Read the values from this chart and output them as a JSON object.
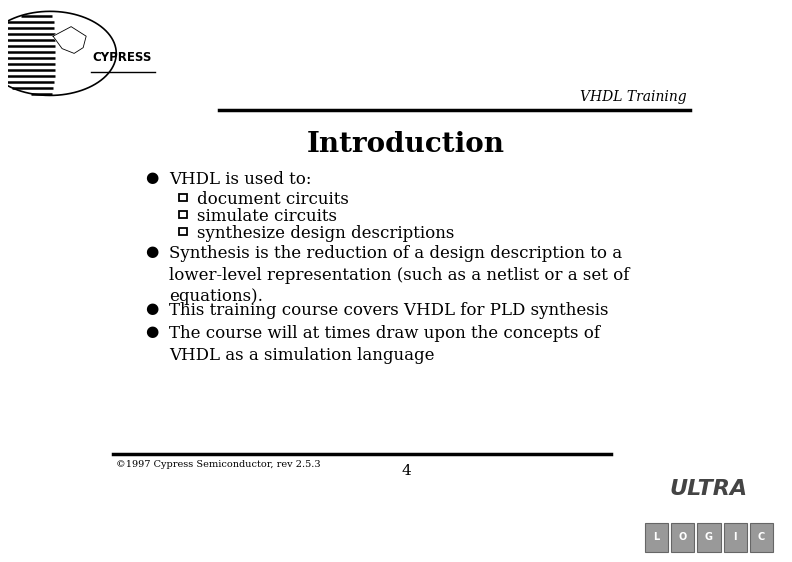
{
  "title": "Introduction",
  "header_text": "VHDL Training",
  "footer_text": "©1997 Cypress Semiconductor, rev 2.5.3",
  "page_number": "4",
  "bg_color": "#ffffff",
  "title_fontsize": 20,
  "body_fontsize": 12,
  "sub_fontsize": 12,
  "main_bullets": [
    {
      "text": "VHDL is used to:",
      "sub": [
        "document circuits",
        "simulate circuits",
        "synthesize design descriptions"
      ]
    },
    {
      "text": "Synthesis is the reduction of a design description to a\nlower-level representation (such as a netlist or a set of\nequations).",
      "sub": []
    },
    {
      "text": "This training course covers VHDL for PLD synthesis",
      "sub": []
    },
    {
      "text": "The course will at times draw upon the concepts of\nVHDL as a simulation language",
      "sub": []
    }
  ],
  "line_color": "#000000",
  "text_color": "#000000"
}
